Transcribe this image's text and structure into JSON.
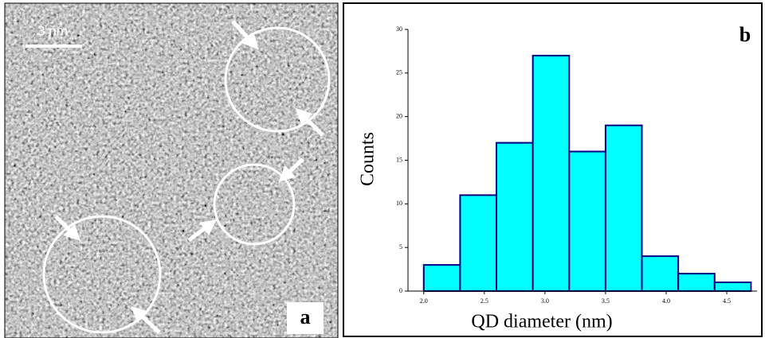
{
  "panel_a": {
    "scale_bar": "3 nm",
    "label": "a"
  },
  "chart_data": {
    "type": "histogram",
    "panel_label": "b",
    "xlabel": "QD diameter (nm)",
    "ylabel": "Counts",
    "bins": [
      2.0,
      2.3,
      2.6,
      2.9,
      3.2,
      3.5,
      3.8,
      4.1,
      4.4,
      4.7
    ],
    "counts": [
      3,
      11,
      17,
      27,
      16,
      19,
      4,
      2,
      1
    ],
    "color": "#00ffff",
    "edgecolor": "#000080",
    "xlim": [
      1.87,
      4.75
    ],
    "xticks": [
      {
        "value": 2.0,
        "label": "2.0"
      },
      {
        "value": 2.5,
        "label": "2.5"
      },
      {
        "value": 3.0,
        "label": "3.0"
      },
      {
        "value": 3.5,
        "label": "3.5"
      },
      {
        "value": 4.0,
        "label": "4.0"
      },
      {
        "value": 4.5,
        "label": "4.5"
      }
    ],
    "ylim": [
      0,
      30
    ],
    "yticks": [
      0,
      5,
      10,
      15,
      20,
      25,
      30
    ]
  }
}
